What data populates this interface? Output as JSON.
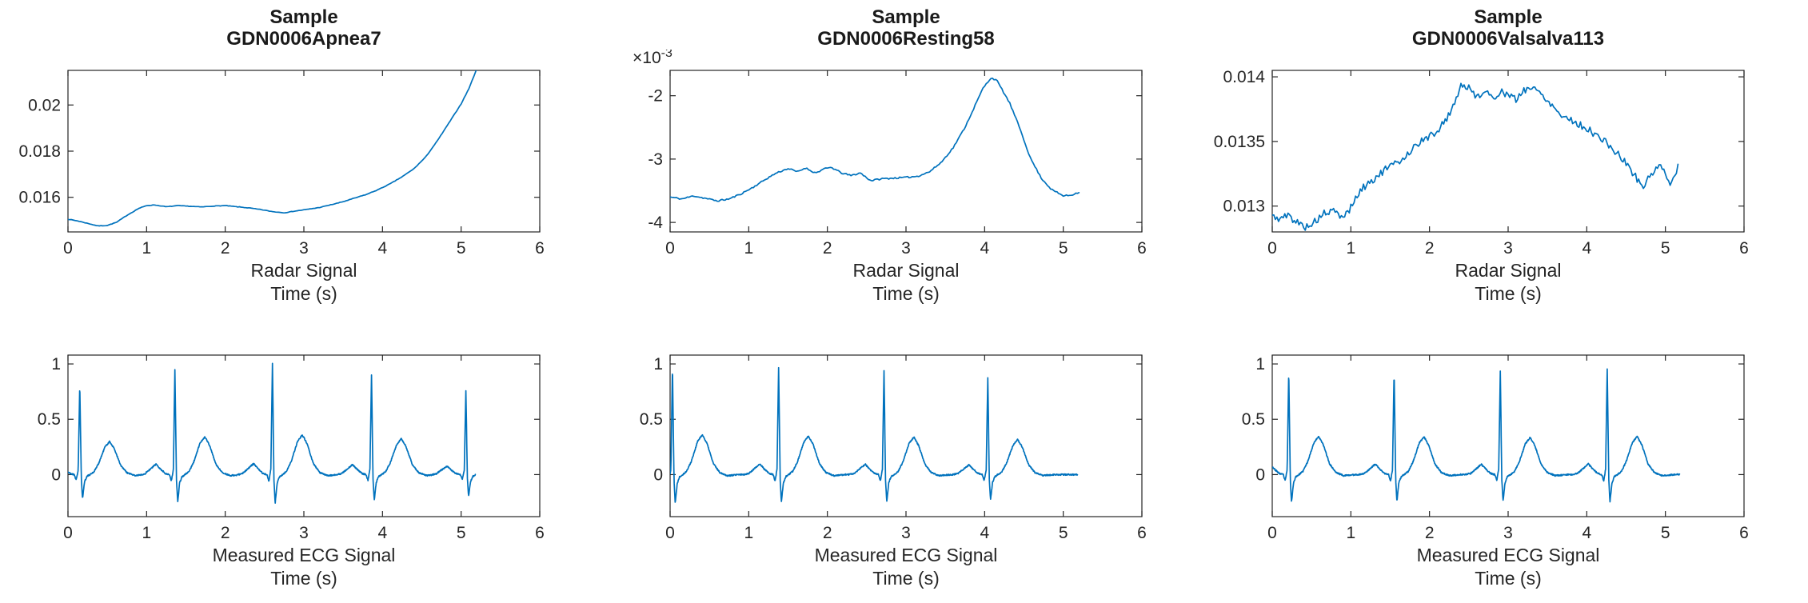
{
  "figure": {
    "background": "#ffffff"
  },
  "palette": {
    "line": "#0072BD",
    "axis": "#262626",
    "label": "#262626",
    "title": "#1a1a1a"
  },
  "ecg_template": [
    [
      -0.45,
      0
    ],
    [
      -0.38,
      0.01
    ],
    [
      -0.3,
      0.06
    ],
    [
      -0.24,
      0.1
    ],
    [
      -0.18,
      0.05
    ],
    [
      -0.12,
      0.01
    ],
    [
      -0.07,
      0
    ],
    [
      -0.045,
      -0.06
    ],
    [
      -0.02,
      0.05
    ],
    [
      0,
      1
    ],
    [
      0.02,
      -0.05
    ],
    [
      0.035,
      -0.26
    ],
    [
      0.06,
      -0.08
    ],
    [
      0.09,
      -0.02
    ],
    [
      0.13,
      0
    ],
    [
      0.18,
      0.03
    ],
    [
      0.24,
      0.12
    ],
    [
      0.32,
      0.3
    ],
    [
      0.38,
      0.36
    ],
    [
      0.44,
      0.28
    ],
    [
      0.52,
      0.1
    ],
    [
      0.6,
      0.02
    ],
    [
      0.7,
      -0.01
    ],
    [
      0.85,
      0
    ]
  ],
  "chart_data": [
    {
      "id": "radar-apnea",
      "type": "line",
      "title_lines": [
        "Sample",
        "GDN0006Apnea7"
      ],
      "xlabel_lines": [
        "Radar Signal",
        "Time (s)"
      ],
      "xlim": [
        0,
        6
      ],
      "ylim": [
        0.0145,
        0.0215
      ],
      "xticks": [
        {
          "v": 0,
          "label": "0"
        },
        {
          "v": 1,
          "label": "1"
        },
        {
          "v": 2,
          "label": "2"
        },
        {
          "v": 3,
          "label": "3"
        },
        {
          "v": 4,
          "label": "4"
        },
        {
          "v": 5,
          "label": "5"
        },
        {
          "v": 6,
          "label": "6"
        }
      ],
      "yticks": [
        {
          "v": 0.016,
          "label": "0.016"
        },
        {
          "v": 0.018,
          "label": "0.018"
        },
        {
          "v": 0.02,
          "label": "0.02"
        }
      ],
      "series": {
        "type": "keypoints",
        "dt": 0.02,
        "noise": 1e-05,
        "noise_seed": 7,
        "points": [
          [
            0,
            0.01505
          ],
          [
            0.12,
            0.01498
          ],
          [
            0.25,
            0.01487
          ],
          [
            0.38,
            0.01476
          ],
          [
            0.5,
            0.01478
          ],
          [
            0.62,
            0.01492
          ],
          [
            0.75,
            0.01522
          ],
          [
            0.9,
            0.01552
          ],
          [
            1,
            0.01564
          ],
          [
            1.1,
            0.01567
          ],
          [
            1.25,
            0.01559
          ],
          [
            1.4,
            0.01564
          ],
          [
            1.55,
            0.01561
          ],
          [
            1.7,
            0.01558
          ],
          [
            1.85,
            0.01562
          ],
          [
            2,
            0.01564
          ],
          [
            2.15,
            0.01559
          ],
          [
            2.3,
            0.01554
          ],
          [
            2.45,
            0.01547
          ],
          [
            2.6,
            0.01538
          ],
          [
            2.75,
            0.01533
          ],
          [
            2.9,
            0.01541
          ],
          [
            3.05,
            0.01548
          ],
          [
            3.2,
            0.01556
          ],
          [
            3.35,
            0.01568
          ],
          [
            3.5,
            0.01581
          ],
          [
            3.65,
            0.01597
          ],
          [
            3.8,
            0.01613
          ],
          [
            3.95,
            0.01634
          ],
          [
            4.1,
            0.01659
          ],
          [
            4.25,
            0.01689
          ],
          [
            4.4,
            0.01724
          ],
          [
            4.55,
            0.01775
          ],
          [
            4.7,
            0.01846
          ],
          [
            4.85,
            0.01925
          ],
          [
            5,
            0.02005
          ],
          [
            5.1,
            0.02072
          ],
          [
            5.2,
            0.02158
          ]
        ]
      }
    },
    {
      "id": "radar-resting",
      "type": "line",
      "title_lines": [
        "Sample",
        "GDN0006Resting58"
      ],
      "xlabel_lines": [
        "Radar Signal",
        "Time (s)"
      ],
      "y_exponent": {
        "base": "×10",
        "exp": "-3"
      },
      "xlim": [
        0,
        6
      ],
      "ylim": [
        -4.15,
        -1.6
      ],
      "xticks": [
        {
          "v": 0,
          "label": "0"
        },
        {
          "v": 1,
          "label": "1"
        },
        {
          "v": 2,
          "label": "2"
        },
        {
          "v": 3,
          "label": "3"
        },
        {
          "v": 4,
          "label": "4"
        },
        {
          "v": 5,
          "label": "5"
        },
        {
          "v": 6,
          "label": "6"
        }
      ],
      "yticks": [
        {
          "v": -4,
          "label": "-4"
        },
        {
          "v": -3,
          "label": "-3"
        },
        {
          "v": -2,
          "label": "-2"
        }
      ],
      "series": {
        "type": "keypoints",
        "dt": 0.02,
        "noise": 0.012,
        "noise_seed": 11,
        "points": [
          [
            0,
            -3.6
          ],
          [
            0.15,
            -3.63
          ],
          [
            0.3,
            -3.58
          ],
          [
            0.45,
            -3.62
          ],
          [
            0.6,
            -3.66
          ],
          [
            0.75,
            -3.63
          ],
          [
            0.9,
            -3.55
          ],
          [
            1.05,
            -3.45
          ],
          [
            1.2,
            -3.33
          ],
          [
            1.35,
            -3.22
          ],
          [
            1.5,
            -3.15
          ],
          [
            1.62,
            -3.2
          ],
          [
            1.72,
            -3.14
          ],
          [
            1.85,
            -3.22
          ],
          [
            1.95,
            -3.16
          ],
          [
            2.05,
            -3.13
          ],
          [
            2.18,
            -3.22
          ],
          [
            2.3,
            -3.26
          ],
          [
            2.42,
            -3.22
          ],
          [
            2.55,
            -3.34
          ],
          [
            2.7,
            -3.31
          ],
          [
            2.85,
            -3.3
          ],
          [
            3,
            -3.29
          ],
          [
            3.15,
            -3.27
          ],
          [
            3.3,
            -3.2
          ],
          [
            3.45,
            -3.05
          ],
          [
            3.6,
            -2.82
          ],
          [
            3.75,
            -2.5
          ],
          [
            3.88,
            -2.15
          ],
          [
            3.98,
            -1.88
          ],
          [
            4.08,
            -1.72
          ],
          [
            4.15,
            -1.75
          ],
          [
            4.22,
            -1.9
          ],
          [
            4.32,
            -2.12
          ],
          [
            4.45,
            -2.52
          ],
          [
            4.58,
            -2.98
          ],
          [
            4.72,
            -3.3
          ],
          [
            4.85,
            -3.48
          ],
          [
            5,
            -3.58
          ],
          [
            5.1,
            -3.57
          ],
          [
            5.2,
            -3.52
          ]
        ]
      }
    },
    {
      "id": "radar-valsalva",
      "type": "line",
      "title_lines": [
        "Sample",
        "GDN0006Valsalva113"
      ],
      "xlabel_lines": [
        "Radar Signal",
        "Time (s)"
      ],
      "xlim": [
        0,
        6
      ],
      "ylim": [
        0.0128,
        0.01405
      ],
      "xticks": [
        {
          "v": 0,
          "label": "0"
        },
        {
          "v": 1,
          "label": "1"
        },
        {
          "v": 2,
          "label": "2"
        },
        {
          "v": 3,
          "label": "3"
        },
        {
          "v": 4,
          "label": "4"
        },
        {
          "v": 5,
          "label": "5"
        },
        {
          "v": 6,
          "label": "6"
        }
      ],
      "yticks": [
        {
          "v": 0.013,
          "label": "0.013"
        },
        {
          "v": 0.0135,
          "label": "0.0135"
        },
        {
          "v": 0.014,
          "label": "0.014"
        }
      ],
      "series": {
        "type": "keypoints",
        "dt": 0.02,
        "noise": 2.8e-05,
        "noise_seed": 5,
        "points": [
          [
            0,
            0.01292
          ],
          [
            0.1,
            0.0129
          ],
          [
            0.2,
            0.01293
          ],
          [
            0.3,
            0.01288
          ],
          [
            0.42,
            0.01284
          ],
          [
            0.55,
            0.01288
          ],
          [
            0.65,
            0.01294
          ],
          [
            0.78,
            0.01296
          ],
          [
            0.9,
            0.01291
          ],
          [
            1,
            0.01299
          ],
          [
            1.1,
            0.0131
          ],
          [
            1.2,
            0.01317
          ],
          [
            1.32,
            0.01322
          ],
          [
            1.45,
            0.01329
          ],
          [
            1.58,
            0.01333
          ],
          [
            1.7,
            0.01339
          ],
          [
            1.82,
            0.01347
          ],
          [
            1.95,
            0.01352
          ],
          [
            2.08,
            0.01357
          ],
          [
            2.2,
            0.01366
          ],
          [
            2.3,
            0.01377
          ],
          [
            2.4,
            0.01394
          ],
          [
            2.5,
            0.01391
          ],
          [
            2.6,
            0.01385
          ],
          [
            2.7,
            0.01389
          ],
          [
            2.8,
            0.01383
          ],
          [
            2.9,
            0.01389
          ],
          [
            3,
            0.01386
          ],
          [
            3.1,
            0.01382
          ],
          [
            3.2,
            0.0139
          ],
          [
            3.3,
            0.01392
          ],
          [
            3.42,
            0.01387
          ],
          [
            3.55,
            0.01379
          ],
          [
            3.68,
            0.0137
          ],
          [
            3.8,
            0.01367
          ],
          [
            3.9,
            0.01363
          ],
          [
            4,
            0.0136
          ],
          [
            4.12,
            0.01355
          ],
          [
            4.25,
            0.01349
          ],
          [
            4.38,
            0.01341
          ],
          [
            4.5,
            0.01333
          ],
          [
            4.62,
            0.01323
          ],
          [
            4.72,
            0.01314
          ],
          [
            4.82,
            0.01326
          ],
          [
            4.92,
            0.0133
          ],
          [
            5,
            0.01327
          ],
          [
            5.06,
            0.01316
          ],
          [
            5.12,
            0.01324
          ],
          [
            5.16,
            0.01332
          ]
        ]
      }
    },
    {
      "id": "ecg-apnea",
      "type": "line",
      "xlabel_lines": [
        "Measured ECG Signal",
        "Time (s)"
      ],
      "xlim": [
        0,
        6
      ],
      "ylim": [
        -0.38,
        1.08
      ],
      "xticks": [
        {
          "v": 0,
          "label": "0"
        },
        {
          "v": 1,
          "label": "1"
        },
        {
          "v": 2,
          "label": "2"
        },
        {
          "v": 3,
          "label": "3"
        },
        {
          "v": 4,
          "label": "4"
        },
        {
          "v": 5,
          "label": "5"
        },
        {
          "v": 6,
          "label": "6"
        }
      ],
      "yticks": [
        {
          "v": 0,
          "label": "0"
        },
        {
          "v": 0.5,
          "label": "0.5"
        },
        {
          "v": 1,
          "label": "1"
        }
      ],
      "series": {
        "type": "ecg",
        "x_end": 5.18,
        "noise": 0.006,
        "noise_seed": 21,
        "beats": [
          [
            0.15,
            0.83
          ],
          [
            1.36,
            0.95
          ],
          [
            2.6,
            1.0
          ],
          [
            3.86,
            0.9
          ],
          [
            5.06,
            0.76
          ]
        ]
      }
    },
    {
      "id": "ecg-resting",
      "type": "line",
      "xlabel_lines": [
        "Measured ECG Signal",
        "Time (s)"
      ],
      "xlim": [
        0,
        6
      ],
      "ylim": [
        -0.38,
        1.08
      ],
      "xticks": [
        {
          "v": 0,
          "label": "0"
        },
        {
          "v": 1,
          "label": "1"
        },
        {
          "v": 2,
          "label": "2"
        },
        {
          "v": 3,
          "label": "3"
        },
        {
          "v": 4,
          "label": "4"
        },
        {
          "v": 5,
          "label": "5"
        },
        {
          "v": 6,
          "label": "6"
        }
      ],
      "yticks": [
        {
          "v": 0,
          "label": "0"
        },
        {
          "v": 0.5,
          "label": "0.5"
        },
        {
          "v": 1,
          "label": "1"
        }
      ],
      "series": {
        "type": "ecg",
        "x_end": 5.18,
        "noise": 0.006,
        "noise_seed": 22,
        "beats": [
          [
            0.03,
            1.0
          ],
          [
            1.38,
            0.97
          ],
          [
            2.72,
            0.94
          ],
          [
            4.04,
            0.88
          ]
        ]
      }
    },
    {
      "id": "ecg-valsalva",
      "type": "line",
      "xlabel_lines": [
        "Measured ECG Signal",
        "Time (s)"
      ],
      "xlim": [
        0,
        6
      ],
      "ylim": [
        -0.38,
        1.08
      ],
      "xticks": [
        {
          "v": 0,
          "label": "0"
        },
        {
          "v": 1,
          "label": "1"
        },
        {
          "v": 2,
          "label": "2"
        },
        {
          "v": 3,
          "label": "3"
        },
        {
          "v": 4,
          "label": "4"
        },
        {
          "v": 5,
          "label": "5"
        },
        {
          "v": 6,
          "label": "6"
        }
      ],
      "yticks": [
        {
          "v": 0,
          "label": "0"
        },
        {
          "v": 0.5,
          "label": "0.5"
        },
        {
          "v": 1,
          "label": "1"
        }
      ],
      "series": {
        "type": "ecg",
        "x_end": 5.18,
        "noise": 0.006,
        "noise_seed": 23,
        "beats": [
          [
            0.21,
            0.96
          ],
          [
            1.55,
            0.95
          ],
          [
            2.9,
            0.93
          ],
          [
            4.26,
            0.96
          ]
        ]
      }
    }
  ]
}
